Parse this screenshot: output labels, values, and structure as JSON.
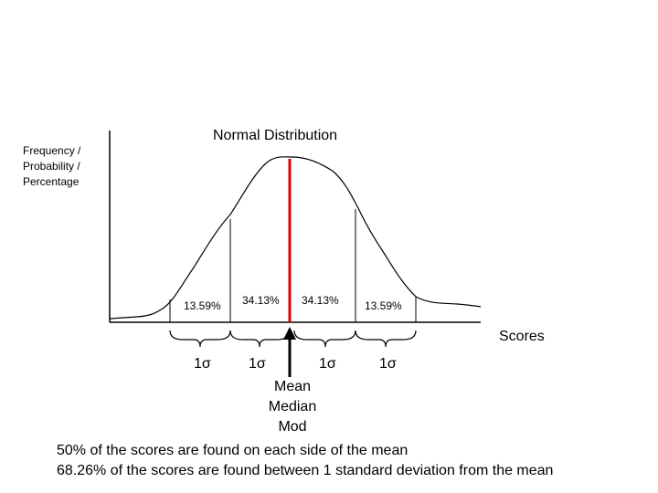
{
  "title": "Normal Distribution",
  "y_axis_label": [
    "Frequency /",
    "Probability /",
    "Percentage"
  ],
  "x_axis_label": "Scores",
  "segments": [
    {
      "percent": "13.59%",
      "sigma": "1σ"
    },
    {
      "percent": "34.13%",
      "sigma": "1σ"
    },
    {
      "percent": "34.13%",
      "sigma": "1σ"
    },
    {
      "percent": "13.59%",
      "sigma": "1σ"
    }
  ],
  "central_labels": [
    "Mean",
    "Median",
    "Mod"
  ],
  "notes": [
    "50% of the scores are found on each side of the mean",
    "68.26% of the scores are found between 1 standard deviation from the mean"
  ],
  "colors": {
    "mean_line": "#dd0000",
    "ink": "#000000",
    "background": "#ffffff"
  }
}
